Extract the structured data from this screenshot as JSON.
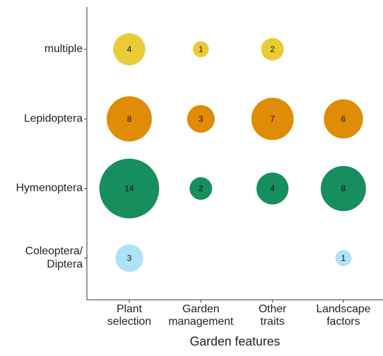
{
  "chart_data": {
    "type": "bubble",
    "x_label": "Garden features",
    "categories": [
      "Plant selection",
      "Garden management",
      "Other traits",
      "Landscape factors"
    ],
    "series": [
      {
        "name": "Coleoptera/ Diptera",
        "color": "#ADE2F7",
        "values": [
          3,
          null,
          null,
          1
        ]
      },
      {
        "name": "Hymenoptera",
        "color": "#168E5E",
        "values": [
          14,
          2,
          4,
          8
        ]
      },
      {
        "name": "Lepidoptera",
        "color": "#E08C06",
        "values": [
          8,
          3,
          7,
          6
        ]
      },
      {
        "name": "multiple",
        "color": "#EBCB33",
        "values": [
          4,
          1,
          2,
          null
        ]
      }
    ]
  }
}
